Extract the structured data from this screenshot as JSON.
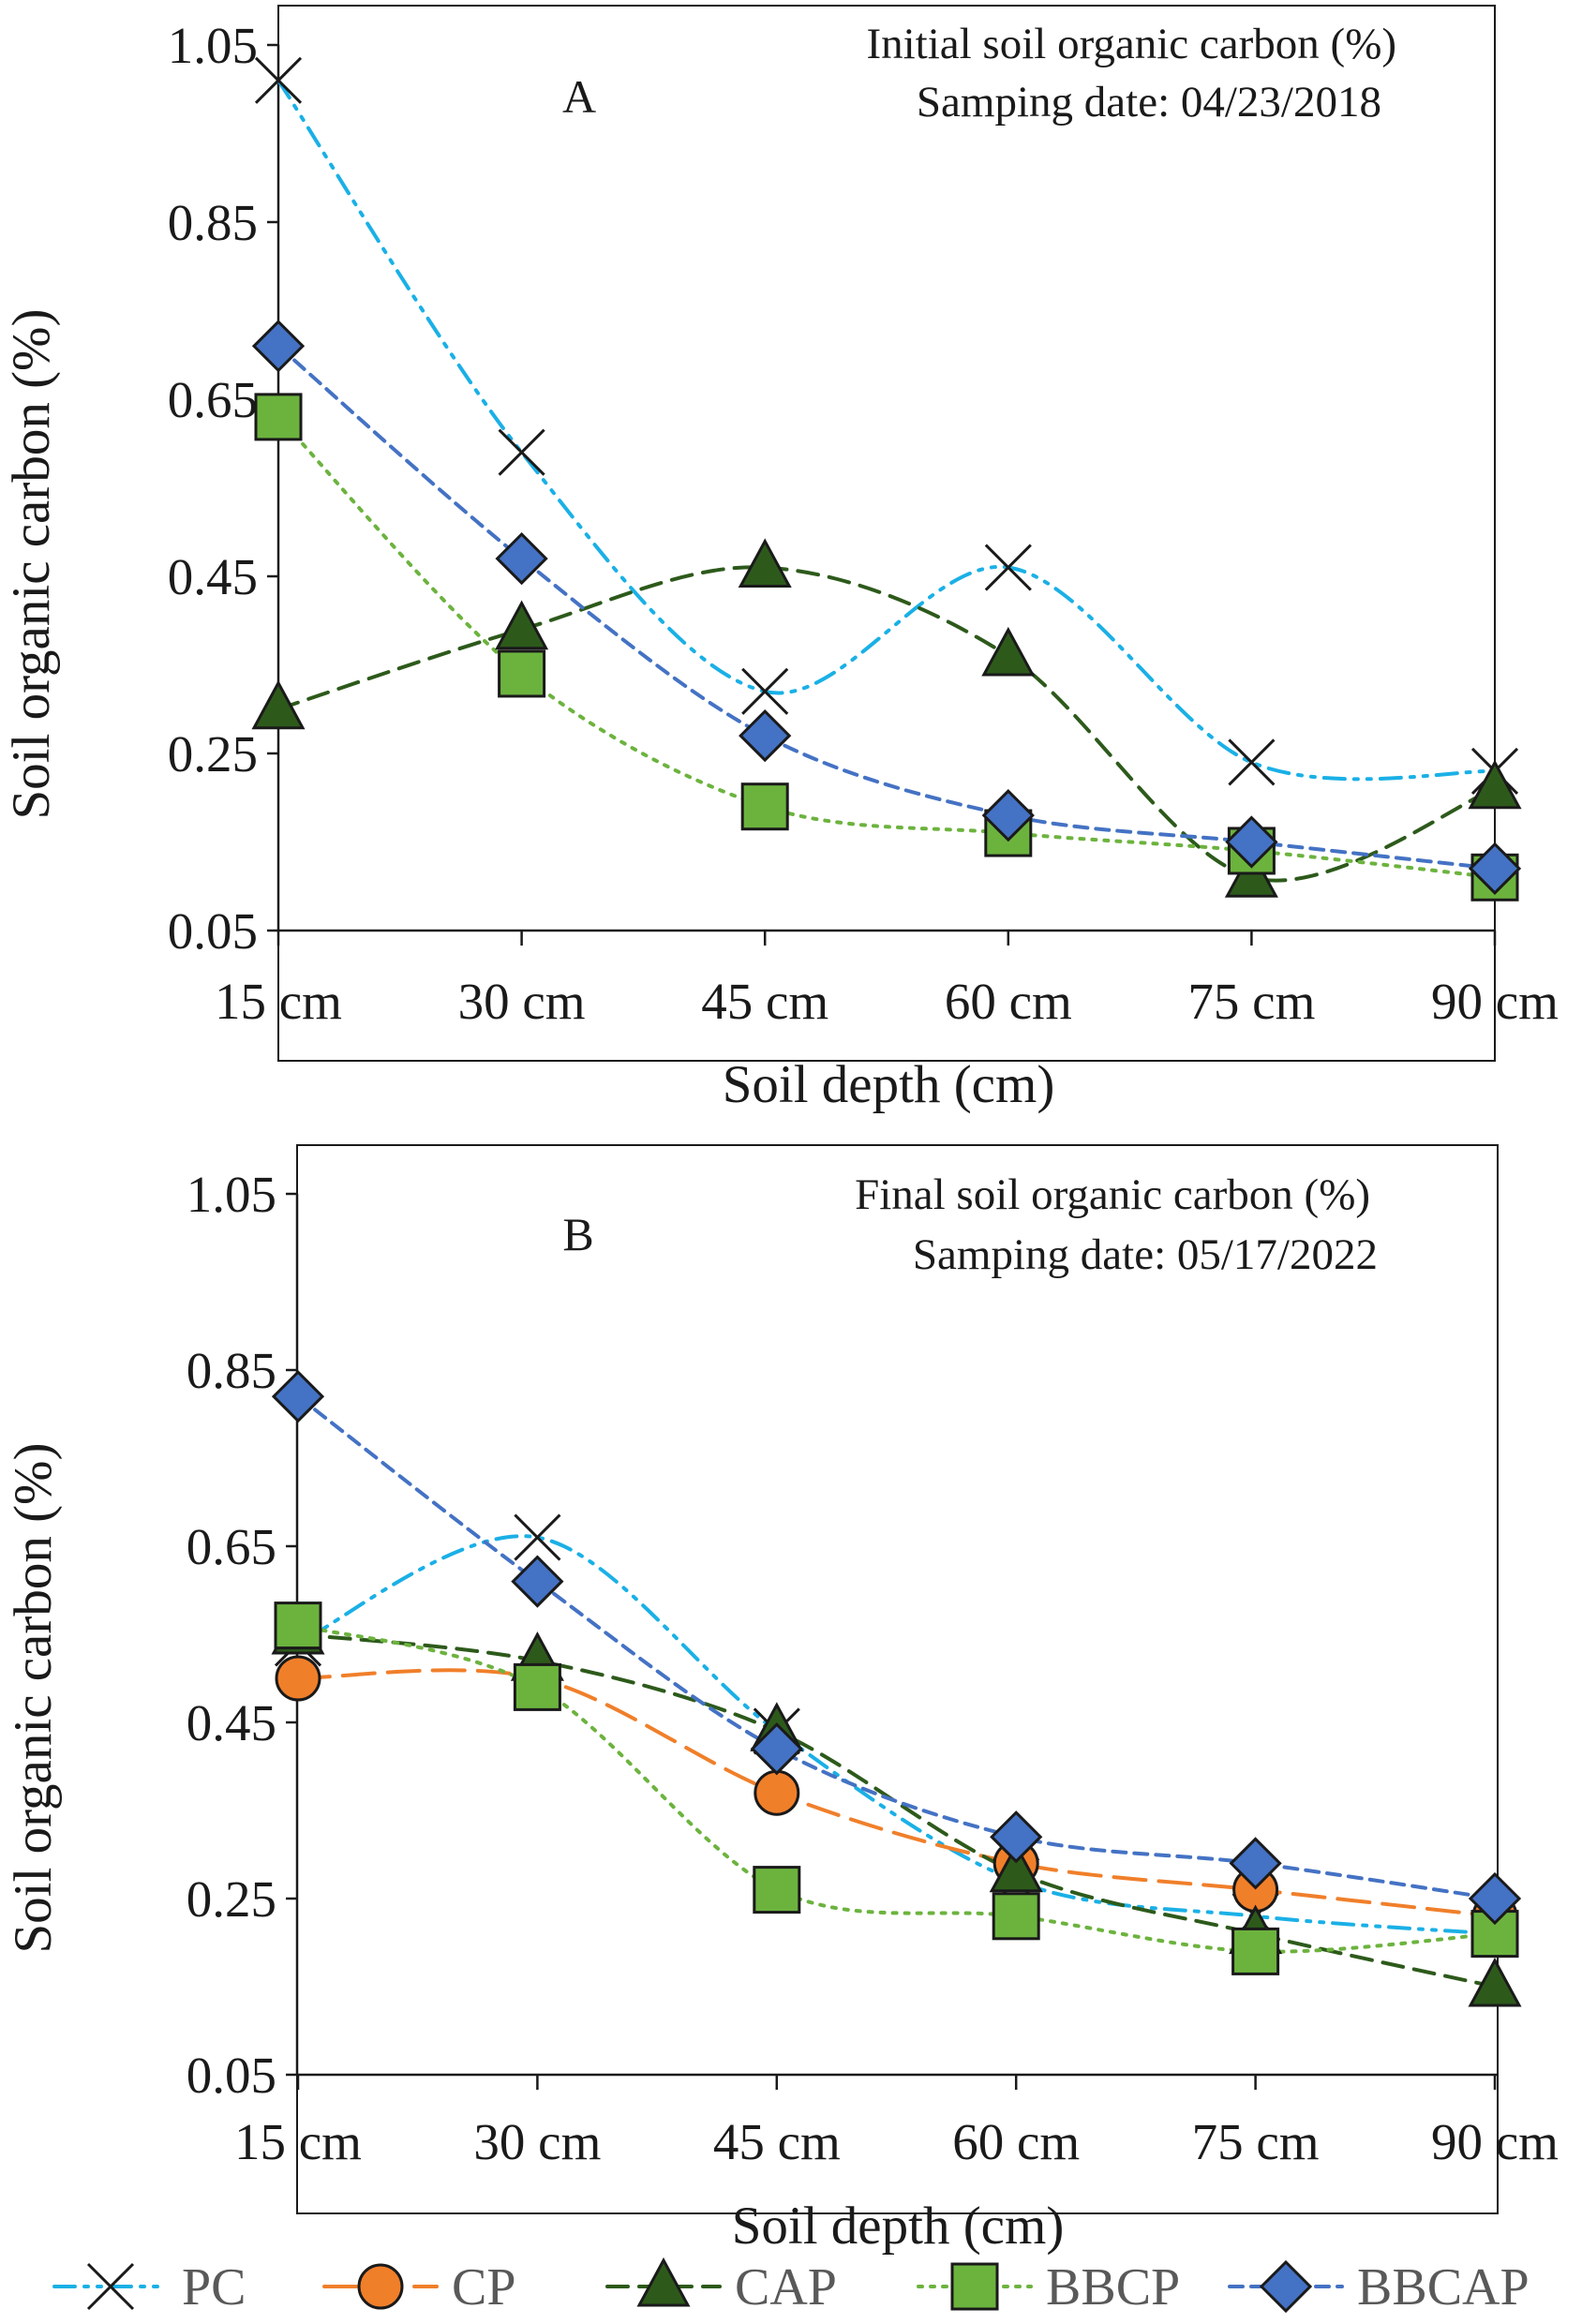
{
  "series_styles": {
    "PC": {
      "color": "#1ab0e6",
      "marker": "x",
      "dash": "dashdotdot"
    },
    "CP": {
      "color": "#f07f2a",
      "marker": "circle",
      "dash": "longdash"
    },
    "CAP": {
      "color": "#2d5a1b",
      "marker": "triangle",
      "dash": "dash"
    },
    "BBCP": {
      "color": "#6cb33e",
      "marker": "square",
      "dash": "dot"
    },
    "BBCAP": {
      "color": "#4472c4",
      "marker": "diamond",
      "dash": "shortdash"
    }
  },
  "chart_data": [
    {
      "type": "line",
      "panel": "A",
      "annotation_lines": [
        "Initial soil organic carbon (%)",
        "Samping date: 04/23/2018"
      ],
      "xlabel": "Soil depth (cm)",
      "ylabel": "Soil organic carbon (%)",
      "categories": [
        "15 cm",
        "30 cm",
        "45 cm",
        "60 cm",
        "75 cm",
        "90 cm"
      ],
      "ylim": [
        0.05,
        1.05
      ],
      "yticks": [
        0.05,
        0.25,
        0.45,
        0.65,
        0.85,
        1.05
      ],
      "ytick_labels": [
        "0.05",
        "0.25",
        "0.45",
        "0.65",
        "0.85",
        "1.05"
      ],
      "series": [
        {
          "name": "PC",
          "values": [
            1.01,
            0.59,
            0.32,
            0.46,
            0.24,
            0.23
          ]
        },
        {
          "name": "CAP",
          "values": [
            0.3,
            0.39,
            0.46,
            0.36,
            0.11,
            0.21
          ]
        },
        {
          "name": "BBCP",
          "values": [
            0.63,
            0.34,
            0.19,
            0.16,
            0.14,
            0.11
          ]
        },
        {
          "name": "BBCAP",
          "values": [
            0.71,
            0.47,
            0.27,
            0.18,
            0.15,
            0.12
          ]
        }
      ]
    },
    {
      "type": "line",
      "panel": "B",
      "annotation_lines": [
        "Final soil organic carbon (%)",
        "Samping date: 05/17/2022"
      ],
      "xlabel": "Soil depth (cm)",
      "ylabel": "Soil organic carbon (%)",
      "categories": [
        "15 cm",
        "30 cm",
        "45 cm",
        "60 cm",
        "75 cm",
        "90 cm"
      ],
      "ylim": [
        0.05,
        1.05
      ],
      "yticks": [
        0.05,
        0.25,
        0.45,
        0.65,
        0.85,
        1.05
      ],
      "ytick_labels": [
        "0.05",
        "0.25",
        "0.45",
        "0.65",
        "0.85",
        "1.05"
      ],
      "series": [
        {
          "name": "PC",
          "values": [
            0.54,
            0.66,
            0.44,
            0.27,
            0.23,
            0.21
          ]
        },
        {
          "name": "CP",
          "values": [
            0.5,
            0.5,
            0.37,
            0.29,
            0.26,
            0.23
          ]
        },
        {
          "name": "CAP",
          "values": [
            0.55,
            0.52,
            0.44,
            0.28,
            0.21,
            0.15
          ]
        },
        {
          "name": "BBCP",
          "values": [
            0.56,
            0.49,
            0.26,
            0.23,
            0.19,
            0.21
          ]
        },
        {
          "name": "BBCAP",
          "values": [
            0.82,
            0.61,
            0.42,
            0.32,
            0.29,
            0.25
          ]
        }
      ]
    }
  ],
  "legend": {
    "entries": [
      "PC",
      "CP",
      "CAP",
      "BBCP",
      "BBCAP"
    ]
  }
}
